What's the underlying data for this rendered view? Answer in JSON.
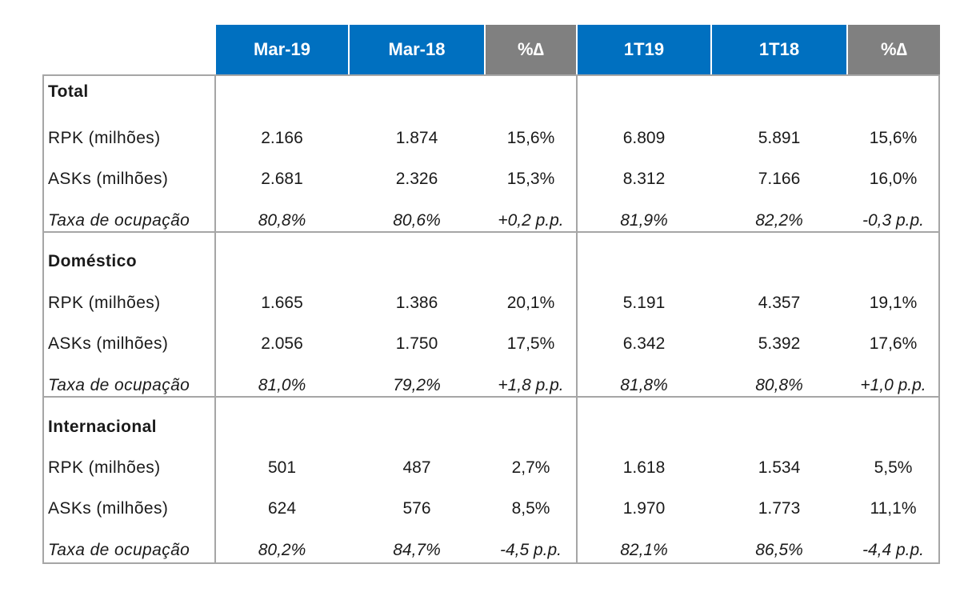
{
  "header": [
    "Mar-19",
    "Mar-18",
    "%∆",
    "1T19",
    "1T18",
    "%∆"
  ],
  "sections": [
    {
      "title": "Total",
      "rows": [
        {
          "label": "RPK (milhões)",
          "values": [
            "2.166",
            "1.874",
            "15,6%",
            "6.809",
            "5.891",
            "15,6%"
          ]
        },
        {
          "label": "ASKs (milhões)",
          "values": [
            "2.681",
            "2.326",
            "15,3%",
            "8.312",
            "7.166",
            "16,0%"
          ]
        },
        {
          "label": "Taxa de ocupação",
          "values": [
            "80,8%",
            "80,6%",
            "+0,2 p.p.",
            "81,9%",
            "82,2%",
            "-0,3 p.p."
          ]
        }
      ]
    },
    {
      "title": "Doméstico",
      "rows": [
        {
          "label": "RPK (milhões)",
          "values": [
            "1.665",
            "1.386",
            "20,1%",
            "5.191",
            "4.357",
            "19,1%"
          ]
        },
        {
          "label": "ASKs (milhões)",
          "values": [
            "2.056",
            "1.750",
            "17,5%",
            "6.342",
            "5.392",
            "17,6%"
          ]
        },
        {
          "label": "Taxa de ocupação",
          "values": [
            "81,0%",
            "79,2%",
            "+1,8 p.p.",
            "81,8%",
            "80,8%",
            "+1,0 p.p."
          ]
        }
      ]
    },
    {
      "title": "Internacional",
      "rows": [
        {
          "label": "RPK (milhões)",
          "values": [
            "501",
            "487",
            "2,7%",
            "1.618",
            "1.534",
            "5,5%"
          ]
        },
        {
          "label": "ASKs (milhões)",
          "values": [
            "624",
            "576",
            "8,5%",
            "1.970",
            "1.773",
            "11,1%"
          ]
        },
        {
          "label": "Taxa de ocupação",
          "values": [
            "80,2%",
            "84,7%",
            "-4,5 p.p.",
            "82,1%",
            "86,5%",
            "-4,4 p.p."
          ]
        }
      ]
    }
  ]
}
